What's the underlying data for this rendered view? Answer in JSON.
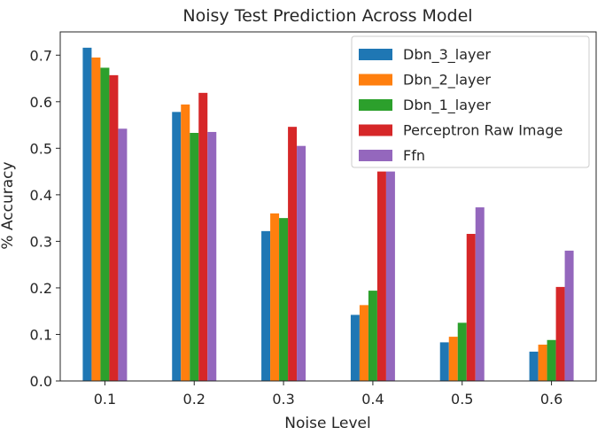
{
  "chart_data": {
    "type": "bar",
    "title": "Noisy Test Prediction Across Model",
    "xlabel": "Noise Level",
    "ylabel": "% Accuracy",
    "categories": [
      "0.1",
      "0.2",
      "0.3",
      "0.4",
      "0.5",
      "0.6"
    ],
    "ylim": [
      0,
      0.75
    ],
    "yticks": [
      "0.0",
      "0.1",
      "0.2",
      "0.3",
      "0.4",
      "0.5",
      "0.6",
      "0.7"
    ],
    "grid": false,
    "legend_position": "top-right",
    "series": [
      {
        "name": "Dbn_3_layer",
        "color": "#1f77b4",
        "values": [
          0.716,
          0.578,
          0.322,
          0.142,
          0.083,
          0.063
        ]
      },
      {
        "name": "Dbn_2_layer",
        "color": "#ff7f0e",
        "values": [
          0.695,
          0.594,
          0.36,
          0.163,
          0.095,
          0.078
        ]
      },
      {
        "name": "Dbn_1_layer",
        "color": "#2ca02c",
        "values": [
          0.673,
          0.533,
          0.35,
          0.194,
          0.125,
          0.088
        ]
      },
      {
        "name": "Perceptron Raw Image",
        "color": "#d62728",
        "values": [
          0.657,
          0.619,
          0.546,
          0.45,
          0.316,
          0.202
        ]
      },
      {
        "name": "Ffn",
        "color": "#9467bd",
        "values": [
          0.542,
          0.535,
          0.505,
          0.45,
          0.373,
          0.28
        ]
      }
    ]
  }
}
